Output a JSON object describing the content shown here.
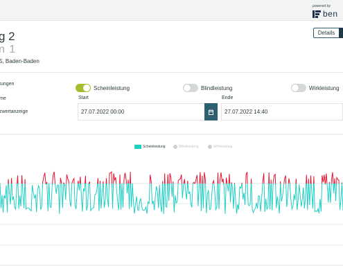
{
  "header": {
    "powered_by": "powered by",
    "logo_text": "ben"
  },
  "page": {
    "title": "g 2",
    "subtitle": "n 1",
    "address": "5, Baden-Baden",
    "details_button": "Details"
  },
  "controls": {
    "row1_label": "tungen",
    "row2_label": "me",
    "row3_label": "zwertanzeige",
    "toggles": [
      {
        "label": "Scheinleistung",
        "on": true
      },
      {
        "label": "Blindleistung",
        "on": false
      },
      {
        "label": "Wirkleistung",
        "on": false
      }
    ],
    "start_label": "Start",
    "start_value": "27.07.2022 00:00",
    "end_label": "Ende",
    "end_value": "27.07.2022 14:40"
  },
  "legend": [
    {
      "label": "Scheinleistung",
      "color": "#1ecfc4",
      "active": true
    },
    {
      "label": "Blindleistung",
      "color": "#cccccc",
      "active": false
    },
    {
      "label": "Wirkleistung",
      "color": "#cccccc",
      "active": false
    }
  ],
  "chart_data": {
    "type": "line",
    "series": [
      {
        "name": "Scheinleistung",
        "color": "#1ecfc4",
        "threshold_color": "#e8112d"
      }
    ],
    "grid": true,
    "legend_position": "top-center"
  }
}
